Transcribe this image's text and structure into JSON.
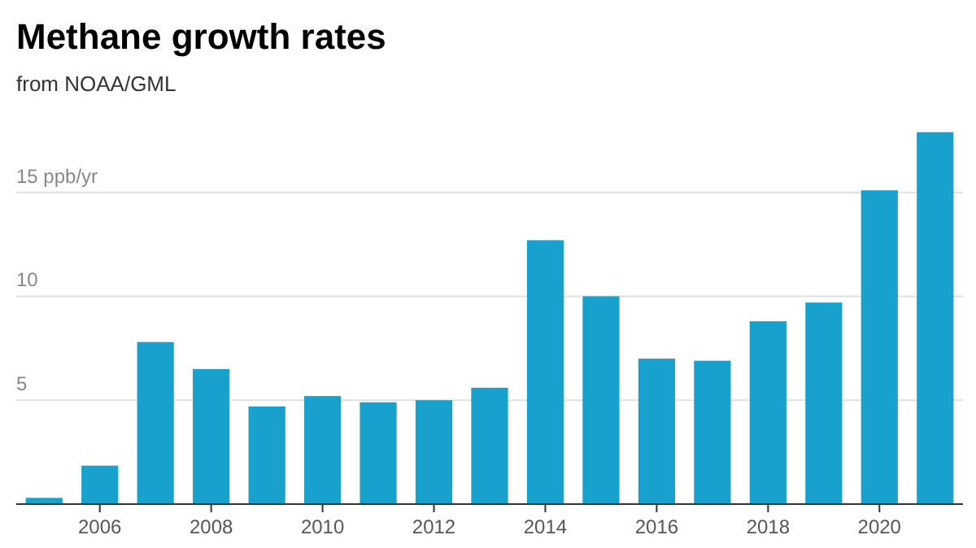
{
  "chart_data": {
    "type": "bar",
    "title": "Methane growth rates",
    "subtitle": "from NOAA/GML",
    "x": [
      2005,
      2006,
      2007,
      2008,
      2009,
      2010,
      2011,
      2012,
      2013,
      2014,
      2015,
      2016,
      2017,
      2018,
      2019,
      2020,
      2021
    ],
    "values": [
      0.3,
      1.85,
      7.8,
      6.5,
      4.7,
      5.2,
      4.9,
      5.0,
      5.6,
      12.7,
      10.0,
      7.0,
      6.9,
      8.8,
      9.7,
      15.1,
      17.9
    ],
    "color": "#18a1cd",
    "xlim": [
      2004.5,
      2021.5
    ],
    "xticks": [
      2006,
      2008,
      2010,
      2012,
      2014,
      2016,
      2018,
      2020
    ],
    "ylim": [
      0,
      18
    ],
    "yticks": [
      5,
      10,
      {
        "value": 15,
        "label": "15 ppb/yr"
      }
    ],
    "grid": "y"
  }
}
